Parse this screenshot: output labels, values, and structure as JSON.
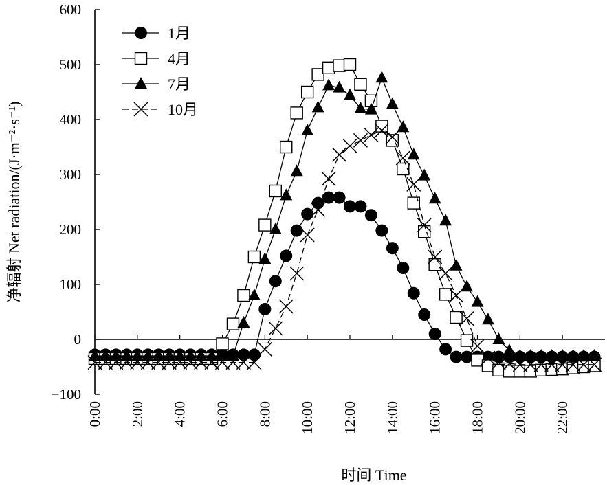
{
  "chart_data": {
    "type": "line",
    "xlabel": "时间 Time",
    "ylabel": "净辐射 Net radiation/(J·m⁻²·s⁻¹)",
    "ylim": [
      -100,
      600
    ],
    "yticks": [
      -100,
      0,
      100,
      200,
      300,
      400,
      500,
      600
    ],
    "xlim": [
      0,
      24
    ],
    "xtick_values": [
      0,
      2,
      4,
      6,
      8,
      10,
      12,
      14,
      16,
      18,
      20,
      22
    ],
    "xtick_labels": [
      "0:00",
      "2:00",
      "4:00",
      "6:00",
      "8:00",
      "10:00",
      "12:00",
      "14:00",
      "16:00",
      "18:00",
      "20:00",
      "22:00"
    ],
    "legend_position": "top-left",
    "grid": false,
    "x": [
      0,
      0.5,
      1,
      1.5,
      2,
      2.5,
      3,
      3.5,
      4,
      4.5,
      5,
      5.5,
      6,
      6.5,
      7,
      7.5,
      8,
      8.5,
      9,
      9.5,
      10,
      10.5,
      11,
      11.5,
      12,
      12.5,
      13,
      13.5,
      14,
      14.5,
      15,
      15.5,
      16,
      16.5,
      17,
      17.5,
      18,
      18.5,
      19,
      19.5,
      20,
      20.5,
      21,
      21.5,
      22,
      22.5,
      23,
      23.5
    ],
    "series": [
      {
        "name": "1月",
        "marker": "filled-circle",
        "values": [
          -28,
          -28,
          -28,
          -28,
          -28,
          -28,
          -28,
          -28,
          -28,
          -28,
          -28,
          -28,
          -28,
          -28,
          -28,
          -28,
          55,
          106,
          152,
          198,
          228,
          248,
          258,
          258,
          242,
          242,
          226,
          198,
          166,
          130,
          84,
          45,
          10,
          -18,
          -32,
          -32,
          -32,
          -32,
          -32,
          -32,
          -32,
          -32,
          -32,
          -32,
          -32,
          -32,
          -32,
          -32
        ]
      },
      {
        "name": "4月",
        "marker": "open-square",
        "values": [
          -35,
          -35,
          -35,
          -35,
          -35,
          -35,
          -35,
          -35,
          -35,
          -35,
          -35,
          -35,
          -8,
          28,
          80,
          150,
          208,
          270,
          350,
          412,
          450,
          482,
          494,
          498,
          500,
          464,
          434,
          388,
          362,
          310,
          248,
          196,
          136,
          82,
          40,
          -2,
          -38,
          -48,
          -56,
          -58,
          -58,
          -58,
          -56,
          -55,
          -54,
          -52,
          -50,
          -48
        ]
      },
      {
        "name": "7月",
        "marker": "filled-triangle",
        "values": [
          -30,
          -30,
          -30,
          -30,
          -30,
          -30,
          -30,
          -30,
          -30,
          -30,
          -30,
          -30,
          -30,
          -30,
          30,
          80,
          146,
          200,
          262,
          306,
          380,
          422,
          462,
          458,
          444,
          420,
          418,
          476,
          428,
          386,
          336,
          298,
          256,
          216,
          134,
          96,
          68,
          36,
          0,
          -20,
          -30,
          -30,
          -30,
          -30,
          -30,
          -30,
          -30,
          -30
        ]
      },
      {
        "name": "10月",
        "marker": "cross",
        "values": [
          -42,
          -42,
          -42,
          -42,
          -42,
          -42,
          -42,
          -42,
          -42,
          -42,
          -42,
          -42,
          -42,
          -42,
          -42,
          -42,
          -18,
          20,
          60,
          120,
          190,
          236,
          292,
          336,
          352,
          362,
          372,
          380,
          368,
          330,
          282,
          208,
          150,
          120,
          80,
          38,
          -12,
          -34,
          -42,
          -44,
          -46,
          -46,
          -46,
          -46,
          -46,
          -46,
          -46,
          -46
        ]
      }
    ]
  }
}
